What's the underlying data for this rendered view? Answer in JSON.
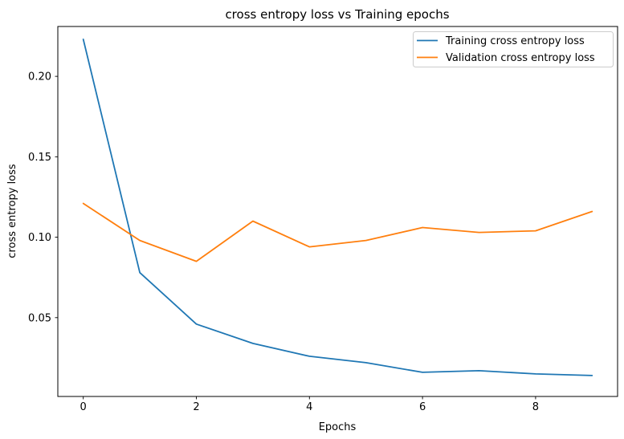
{
  "chart_data": {
    "type": "line",
    "title": "cross entropy loss vs Training epochs",
    "xlabel": "Epochs",
    "ylabel": "cross entropy loss",
    "x": [
      0,
      1,
      2,
      3,
      4,
      5,
      6,
      7,
      8,
      9
    ],
    "series": [
      {
        "name": "Training cross entropy loss",
        "color": "#1f77b4",
        "values": [
          0.223,
          0.078,
          0.046,
          0.034,
          0.026,
          0.022,
          0.016,
          0.017,
          0.015,
          0.014
        ]
      },
      {
        "name": "Validation cross entropy loss",
        "color": "#ff7f0e",
        "values": [
          0.121,
          0.098,
          0.085,
          0.11,
          0.094,
          0.098,
          0.106,
          0.103,
          0.104,
          0.116
        ]
      }
    ],
    "xlim": [
      -0.45,
      9.45
    ],
    "ylim": [
      0.001,
      0.231
    ],
    "xticks": [
      0,
      2,
      4,
      6,
      8
    ],
    "xtick_labels": [
      "0",
      "2",
      "4",
      "6",
      "8"
    ],
    "yticks": [
      0.05,
      0.1,
      0.15,
      0.2
    ],
    "ytick_labels": [
      "0.05",
      "0.10",
      "0.15",
      "0.20"
    ],
    "grid": false,
    "legend_position": "upper right",
    "spine_color": "#000000",
    "background": "#ffffff"
  }
}
